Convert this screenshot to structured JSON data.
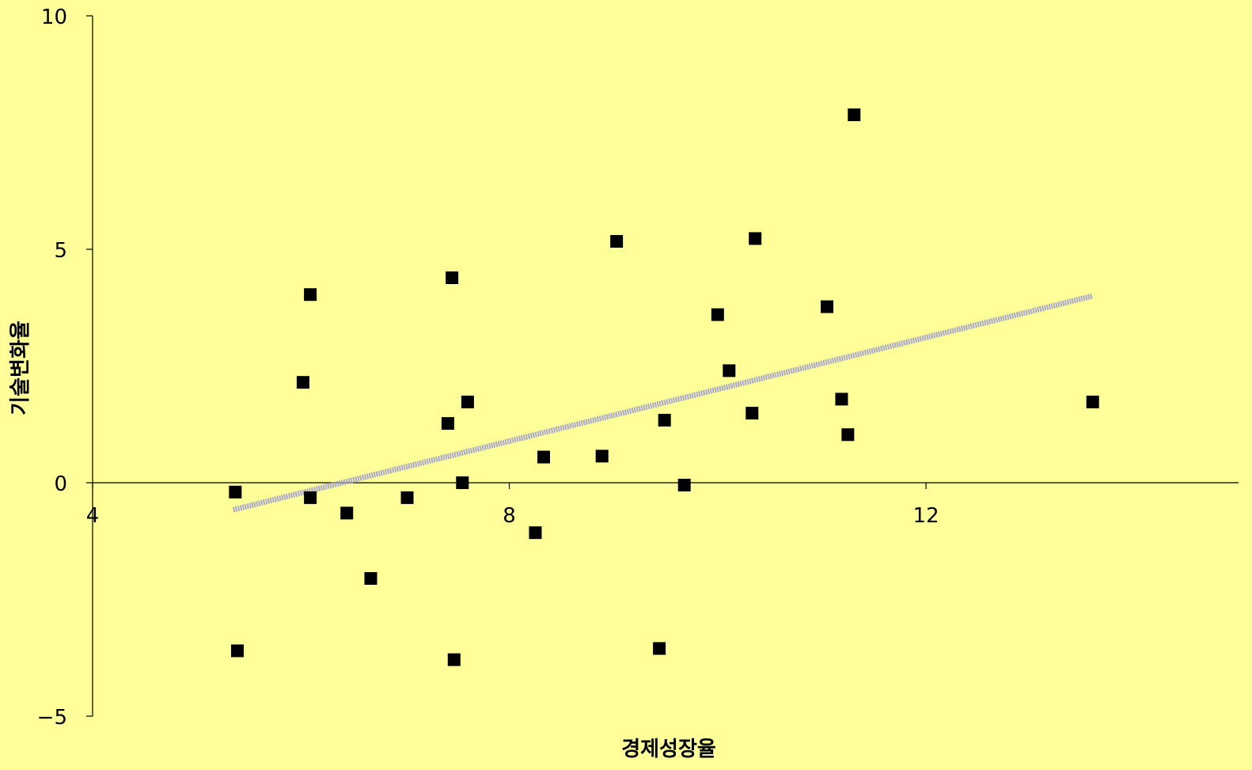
{
  "chart_data": {
    "type": "scatter",
    "title": "",
    "xlabel": "경제성장율",
    "ylabel": "기술변화율",
    "xlim": [
      4,
      15
    ],
    "ylim": [
      -5,
      10
    ],
    "x_ticks": [
      4,
      8,
      12
    ],
    "y_ticks": [
      -5,
      0,
      5,
      10
    ],
    "x_tick_labels": [
      "4",
      "8",
      "12"
    ],
    "y_tick_labels": [
      "−5",
      "0",
      "5",
      "10"
    ],
    "grid": false,
    "legend": "none",
    "colors": {
      "background": "#FFFF99",
      "marker": "#000000",
      "trendline": "#A8A8D0",
      "axis": "#000000"
    },
    "series": [
      {
        "points": [
          [
            5.37,
            -0.2
          ],
          [
            5.39,
            -3.6
          ],
          [
            6.02,
            2.15
          ],
          [
            6.09,
            4.03
          ],
          [
            6.09,
            -0.32
          ],
          [
            6.44,
            -0.65
          ],
          [
            6.67,
            -2.05
          ],
          [
            7.02,
            -0.32
          ],
          [
            7.41,
            1.27
          ],
          [
            7.45,
            4.39
          ],
          [
            7.47,
            -3.79
          ],
          [
            7.55,
            0.0
          ],
          [
            7.6,
            1.73
          ],
          [
            8.25,
            -1.07
          ],
          [
            8.33,
            0.55
          ],
          [
            8.89,
            0.57
          ],
          [
            9.03,
            5.17
          ],
          [
            9.44,
            -3.55
          ],
          [
            9.49,
            1.34
          ],
          [
            9.68,
            -0.05
          ],
          [
            10.0,
            3.6
          ],
          [
            10.11,
            2.4
          ],
          [
            10.33,
            1.49
          ],
          [
            10.36,
            5.23
          ],
          [
            11.05,
            3.77
          ],
          [
            11.19,
            1.79
          ],
          [
            11.25,
            1.03
          ],
          [
            11.31,
            7.88
          ],
          [
            13.6,
            1.73
          ]
        ]
      }
    ],
    "trendline": {
      "x": [
        5.35,
        13.6
      ],
      "y": [
        -0.58,
        4.0
      ]
    }
  }
}
